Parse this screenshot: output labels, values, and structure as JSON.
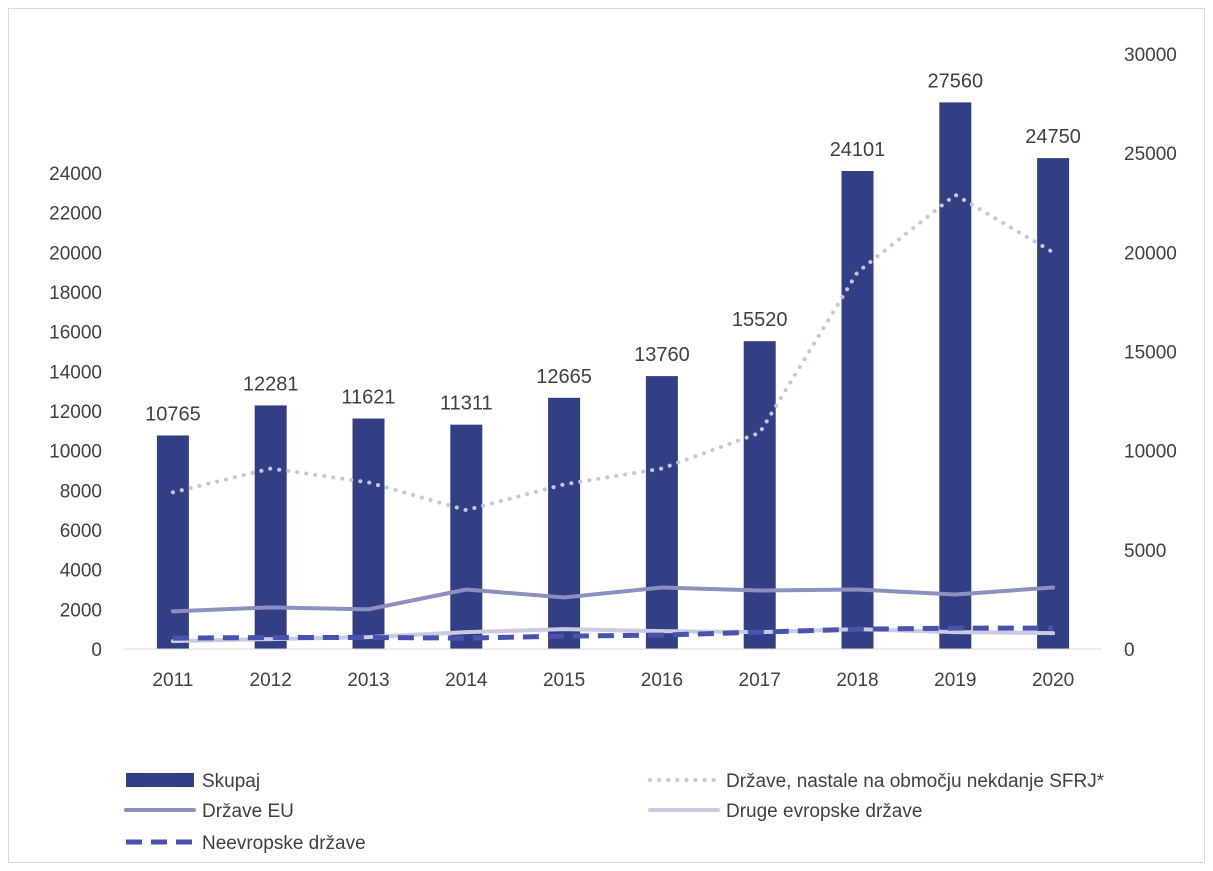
{
  "chart_data": {
    "type": "bar",
    "categories": [
      "2011",
      "2012",
      "2013",
      "2014",
      "2015",
      "2016",
      "2017",
      "2018",
      "2019",
      "2020"
    ],
    "bar_series": {
      "name": "Skupaj",
      "axis": "right",
      "values": [
        10765,
        12281,
        11621,
        11311,
        12665,
        13760,
        15520,
        24101,
        27560,
        24750
      ],
      "labels": [
        "10765",
        "12281",
        "11621",
        "11311",
        "12665",
        "13760",
        "15520",
        "24101",
        "27560",
        "24750"
      ]
    },
    "line_series": [
      {
        "name": "Države, nastale na območju nekdanje SFRJ*",
        "axis": "left",
        "style": "dotted",
        "values": [
          7900,
          9100,
          8400,
          7000,
          8300,
          9100,
          10900,
          19000,
          22900,
          20000
        ]
      },
      {
        "name": "Države EU",
        "axis": "left",
        "style": "solid",
        "values": [
          1900,
          2100,
          2000,
          3000,
          2600,
          3100,
          2950,
          3000,
          2750,
          3100
        ]
      },
      {
        "name": "Druge evropske države",
        "axis": "left",
        "style": "solid",
        "values": [
          400,
          500,
          600,
          850,
          1000,
          900,
          850,
          1000,
          850,
          800
        ]
      },
      {
        "name": "Neevropske države",
        "axis": "left",
        "style": "dashed",
        "values": [
          550,
          580,
          580,
          550,
          650,
          700,
          850,
          1000,
          1050,
          1050
        ]
      }
    ],
    "left_axis": {
      "min": 0,
      "max": 24000,
      "step": 2000
    },
    "right_axis": {
      "min": 0,
      "max": 30000,
      "step": 5000
    },
    "grid": false,
    "legend_position": "bottom",
    "colors": {
      "Skupaj": "#333f85",
      "Države, nastale na območju nekdanje SFRJ*": "#c3c6df",
      "Države EU": "#8c90c0",
      "Druge evropske države": "#c9cbe2",
      "Neevropske države": "#4654b0"
    }
  }
}
